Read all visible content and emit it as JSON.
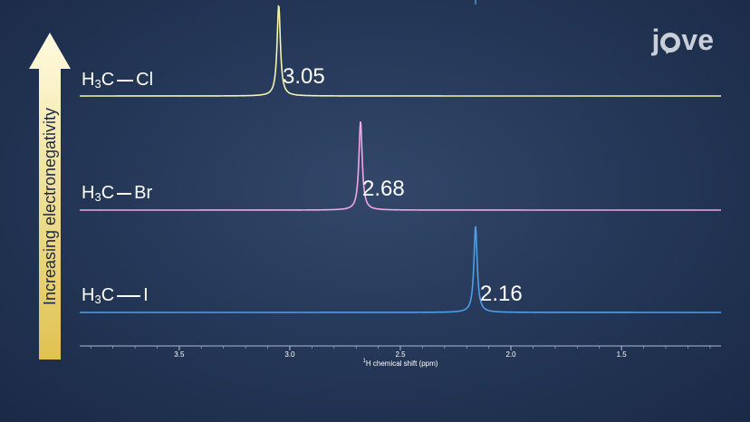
{
  "brand": {
    "logo_text_pre": "j",
    "logo_text_post": "ve"
  },
  "arrow": {
    "label": "Increasing  electronegativity",
    "color_top": "#fffbe0",
    "color_bottom": "#e3c85a"
  },
  "chart_data": {
    "type": "line",
    "xlabel_sup": "1",
    "xlabel": "H chemical shift (ppm)",
    "xlim": [
      3.95,
      1.05
    ],
    "xticks": [
      3.5,
      3.0,
      2.5,
      2.0,
      1.5
    ],
    "xtick_labels": [
      "3.5",
      "3.0",
      "2.5",
      "2.0",
      "1.5"
    ],
    "series": [
      {
        "element": "Cl",
        "peak_ppm": 3.05,
        "peak_label": "3.05",
        "color": "#f4f4b0"
      },
      {
        "element": "Br",
        "peak_ppm": 2.68,
        "peak_label": "2.68",
        "color": "#f2a6e6"
      },
      {
        "element": "I",
        "peak_ppm": 2.16,
        "peak_label": "2.16",
        "color": "#4e9ee6"
      }
    ],
    "molecule_prefix": "H",
    "molecule_sub": "3",
    "molecule_mid": "C"
  }
}
